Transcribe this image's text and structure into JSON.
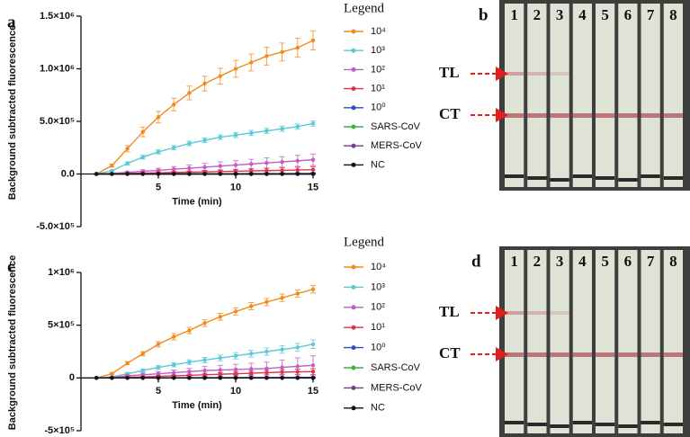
{
  "chart_data": [
    {
      "type": "line",
      "panel_label": "a",
      "y_label": "Background subtracted fluorescence",
      "x_label": "Time (min)",
      "legend_title": "Legend",
      "x": [
        1,
        2,
        3,
        4,
        5,
        6,
        7,
        8,
        9,
        10,
        11,
        12,
        13,
        14,
        15
      ],
      "xlim": [
        0,
        15
      ],
      "xticks": [
        5,
        10,
        15
      ],
      "ylim": [
        -500000,
        1500000
      ],
      "yticks": [
        {
          "value": 1500000,
          "label": "1.5×10⁶"
        },
        {
          "value": 1000000,
          "label": "1.0×10⁶"
        },
        {
          "value": 500000,
          "label": "5.0×10⁵"
        },
        {
          "value": 0,
          "label": "0.0"
        },
        {
          "value": -500000,
          "label": "-5.0×10⁵"
        }
      ],
      "series": [
        {
          "name": "10⁴",
          "color": "#f28b1e",
          "values": [
            0,
            80000,
            240000,
            400000,
            540000,
            660000,
            770000,
            860000,
            930000,
            1000000,
            1060000,
            1120000,
            1160000,
            1200000,
            1270000
          ],
          "errors": [
            5000,
            15000,
            30000,
            45000,
            55000,
            60000,
            65000,
            70000,
            75000,
            80000,
            80000,
            85000,
            85000,
            90000,
            90000
          ]
        },
        {
          "name": "10³",
          "color": "#5bc8d8",
          "values": [
            0,
            30000,
            100000,
            160000,
            210000,
            250000,
            290000,
            320000,
            350000,
            370000,
            390000,
            410000,
            430000,
            450000,
            480000
          ],
          "errors": [
            3000,
            8000,
            15000,
            18000,
            20000,
            20000,
            22000,
            22000,
            22000,
            24000,
            24000,
            24000,
            25000,
            25000,
            25000
          ]
        },
        {
          "name": "10²",
          "color": "#c05ec8",
          "values": [
            0,
            5000,
            15000,
            25000,
            35000,
            45000,
            55000,
            65000,
            75000,
            85000,
            95000,
            105000,
            115000,
            125000,
            135000
          ],
          "errors": [
            2000,
            5000,
            10000,
            15000,
            20000,
            25000,
            30000,
            35000,
            40000,
            42000,
            45000,
            48000,
            50000,
            52000,
            55000
          ]
        },
        {
          "name": "10¹",
          "color": "#e0334f",
          "values": [
            0,
            2000,
            5000,
            8000,
            11000,
            14000,
            17000,
            20000,
            23000,
            26000,
            29000,
            32000,
            35000,
            38000,
            41000
          ],
          "errors": [
            1000,
            2000,
            4000,
            6000,
            8000,
            10000,
            12000,
            14000,
            16000,
            18000,
            20000,
            22000,
            24000,
            26000,
            28000
          ]
        },
        {
          "name": "10⁰",
          "color": "#2a4fc0",
          "values": [
            0,
            0,
            1000,
            1000,
            2000,
            2000,
            2000,
            3000,
            3000,
            3000,
            4000,
            4000,
            4000,
            5000,
            5000
          ],
          "errors": [
            1000,
            1000,
            1000,
            2000,
            2000,
            2000,
            3000,
            3000,
            3000,
            4000,
            4000,
            4000,
            5000,
            5000,
            5000
          ]
        },
        {
          "name": "SARS-CoV",
          "color": "#3db33d",
          "values": [
            0,
            0,
            0,
            0,
            0,
            0,
            0,
            0,
            0,
            0,
            0,
            0,
            0,
            0,
            0
          ],
          "errors": [
            1000,
            1000,
            1000,
            1000,
            1000,
            1000,
            1000,
            1000,
            1000,
            1000,
            1000,
            1000,
            1000,
            1000,
            1000
          ]
        },
        {
          "name": "MERS-CoV",
          "color": "#7b3a8a",
          "values": [
            0,
            0,
            0,
            0,
            0,
            0,
            0,
            0,
            0,
            0,
            0,
            0,
            0,
            0,
            0
          ],
          "errors": [
            1000,
            1000,
            1000,
            1000,
            1000,
            1000,
            1000,
            1000,
            1000,
            1000,
            1000,
            1000,
            1000,
            1000,
            1000
          ]
        },
        {
          "name": "NC",
          "color": "#111111",
          "values": [
            0,
            0,
            0,
            0,
            0,
            0,
            0,
            0,
            0,
            0,
            0,
            0,
            0,
            0,
            0
          ],
          "errors": [
            1000,
            1000,
            1000,
            1000,
            1000,
            1000,
            1000,
            1000,
            1000,
            1000,
            1000,
            1000,
            1000,
            1000,
            1000
          ]
        }
      ]
    },
    {
      "type": "line",
      "panel_label": "c",
      "y_label": "Background subtracted fluorescence",
      "x_label": "Time (min)",
      "legend_title": "Legend",
      "x": [
        1,
        2,
        3,
        4,
        5,
        6,
        7,
        8,
        9,
        10,
        11,
        12,
        13,
        14,
        15
      ],
      "xlim": [
        0,
        15
      ],
      "xticks": [
        5,
        10,
        15
      ],
      "ylim": [
        -500000,
        1000000
      ],
      "yticks": [
        {
          "value": 1000000,
          "label": "1×10⁶"
        },
        {
          "value": 500000,
          "label": "5×10⁵"
        },
        0,
        {
          "value": -500000,
          "label": "-5×10⁵"
        }
      ],
      "series": [
        {
          "name": "10⁴",
          "color": "#f28b1e",
          "values": [
            0,
            40000,
            140000,
            230000,
            320000,
            390000,
            450000,
            520000,
            580000,
            630000,
            680000,
            720000,
            760000,
            800000,
            840000
          ],
          "errors": [
            3000,
            8000,
            15000,
            20000,
            25000,
            30000,
            30000,
            32000,
            32000,
            34000,
            34000,
            34000,
            35000,
            35000,
            35000
          ]
        },
        {
          "name": "10³",
          "color": "#5bc8d8",
          "values": [
            0,
            10000,
            40000,
            70000,
            100000,
            125000,
            150000,
            170000,
            190000,
            210000,
            230000,
            250000,
            270000,
            290000,
            320000
          ],
          "errors": [
            2000,
            5000,
            10000,
            15000,
            18000,
            20000,
            22000,
            25000,
            28000,
            30000,
            32000,
            34000,
            36000,
            38000,
            40000
          ]
        },
        {
          "name": "10²",
          "color": "#c05ec8",
          "values": [
            0,
            5000,
            20000,
            30000,
            40000,
            50000,
            60000,
            70000,
            75000,
            80000,
            85000,
            90000,
            100000,
            110000,
            120000
          ],
          "errors": [
            2000,
            5000,
            10000,
            15000,
            20000,
            25000,
            30000,
            40000,
            45000,
            50000,
            55000,
            60000,
            70000,
            80000,
            90000
          ]
        },
        {
          "name": "10¹",
          "color": "#e0334f",
          "values": [
            0,
            2000,
            6000,
            10000,
            15000,
            20000,
            25000,
            30000,
            35000,
            40000,
            45000,
            50000,
            55000,
            58000,
            60000
          ],
          "errors": [
            1000,
            2000,
            4000,
            6000,
            8000,
            10000,
            12000,
            14000,
            16000,
            18000,
            20000,
            22000,
            24000,
            26000,
            28000
          ]
        },
        {
          "name": "10⁰",
          "color": "#2a4fc0",
          "values": [
            0,
            0,
            1000,
            1000,
            2000,
            2000,
            2000,
            3000,
            3000,
            3000,
            4000,
            4000,
            4000,
            5000,
            5000
          ],
          "errors": [
            1000,
            1000,
            1000,
            2000,
            2000,
            2000,
            3000,
            3000,
            3000,
            4000,
            4000,
            4000,
            5000,
            5000,
            5000
          ]
        },
        {
          "name": "SARS-CoV",
          "color": "#3db33d",
          "values": [
            0,
            0,
            0,
            0,
            0,
            0,
            0,
            0,
            0,
            0,
            0,
            0,
            0,
            0,
            0
          ],
          "errors": [
            1000,
            1000,
            1000,
            1000,
            1000,
            1000,
            1000,
            1000,
            1000,
            1000,
            1000,
            1000,
            1000,
            1000,
            1000
          ]
        },
        {
          "name": "MERS-CoV",
          "color": "#7b3a8a",
          "values": [
            0,
            0,
            0,
            0,
            0,
            0,
            0,
            0,
            0,
            0,
            0,
            0,
            0,
            0,
            0
          ],
          "errors": [
            1000,
            1000,
            1000,
            1000,
            1000,
            1000,
            1000,
            1000,
            1000,
            1000,
            1000,
            1000,
            1000,
            1000,
            1000
          ]
        },
        {
          "name": "NC",
          "color": "#111111",
          "values": [
            0,
            0,
            0,
            0,
            0,
            0,
            0,
            0,
            0,
            0,
            0,
            0,
            0,
            0,
            0
          ],
          "errors": [
            1000,
            1000,
            1000,
            1000,
            1000,
            1000,
            1000,
            1000,
            1000,
            1000,
            1000,
            1000,
            1000,
            1000,
            1000
          ]
        }
      ]
    }
  ],
  "strip_panels": [
    {
      "label": "b",
      "lanes": [
        "1",
        "2",
        "3",
        "4",
        "5",
        "6",
        "7",
        "8"
      ],
      "markers": [
        "TL",
        "CT"
      ]
    },
    {
      "label": "d",
      "lanes": [
        "1",
        "2",
        "3",
        "4",
        "5",
        "6",
        "7",
        "8"
      ],
      "markers": [
        "TL",
        "CT"
      ]
    }
  ]
}
